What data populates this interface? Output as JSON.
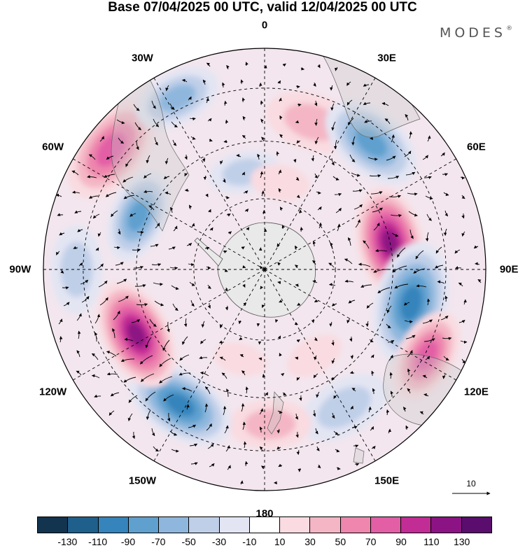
{
  "title": "Base 07/04/2025 00 UTC, valid 12/04/2025 00 UTC",
  "brand": "MODES",
  "brand_mark": "®",
  "longitude_labels": [
    {
      "text": "0",
      "lon": 0
    },
    {
      "text": "30E",
      "lon": 30
    },
    {
      "text": "60E",
      "lon": 60
    },
    {
      "text": "90E",
      "lon": 90
    },
    {
      "text": "120E",
      "lon": 120
    },
    {
      "text": "150E",
      "lon": 150
    },
    {
      "text": "180",
      "lon": 180
    },
    {
      "text": "150W",
      "lon": -150
    },
    {
      "text": "120W",
      "lon": -120
    },
    {
      "text": "90W",
      "lon": -90
    },
    {
      "text": "60W",
      "lon": -60
    },
    {
      "text": "30W",
      "lon": -30
    }
  ],
  "reference_vector": {
    "label": "10"
  },
  "colorbar": {
    "colors": [
      "#12344f",
      "#1f5f8c",
      "#3584bc",
      "#5fa0cf",
      "#8fb7dd",
      "#bfcfe8",
      "#e3e5f3",
      "#ffffff",
      "#f9dbe1",
      "#f4b6c4",
      "#ee86ad",
      "#e25fa6",
      "#c22c95",
      "#8c1383",
      "#5a0d6d"
    ],
    "ticks": [
      "-130",
      "-110",
      "-90",
      "-70",
      "-50",
      "-30",
      "-10",
      "10",
      "30",
      "50",
      "70",
      "90",
      "110",
      "130"
    ]
  },
  "anomalies": [
    {
      "lon": 78,
      "r": 0.58,
      "value": 130,
      "size": 0.95
    },
    {
      "lon": 103,
      "r": 0.68,
      "value": -95,
      "size": 1.05
    },
    {
      "lon": 118,
      "r": 0.83,
      "value": 75,
      "size": 0.8
    },
    {
      "lon": 150,
      "r": 0.72,
      "value": -40,
      "size": 0.8
    },
    {
      "lon": 178,
      "r": 0.7,
      "value": 40,
      "size": 0.7
    },
    {
      "lon": -148,
      "r": 0.72,
      "value": -100,
      "size": 0.95
    },
    {
      "lon": -117,
      "r": 0.65,
      "value": 125,
      "size": 0.95
    },
    {
      "lon": -90,
      "r": 0.85,
      "value": -45,
      "size": 0.75
    },
    {
      "lon": -67,
      "r": 0.62,
      "value": -75,
      "size": 0.8
    },
    {
      "lon": -52,
      "r": 0.88,
      "value": 85,
      "size": 0.95
    },
    {
      "lon": -27,
      "r": 0.87,
      "value": -55,
      "size": 0.75
    },
    {
      "lon": -12,
      "r": 0.45,
      "value": -40,
      "size": 0.6
    },
    {
      "lon": 18,
      "r": 0.7,
      "value": 35,
      "size": 0.8
    },
    {
      "lon": 40,
      "r": 0.75,
      "value": -85,
      "size": 0.9
    },
    {
      "lon": 10,
      "r": 0.4,
      "value": 30,
      "size": 0.5
    },
    {
      "lon": 150,
      "r": 0.45,
      "value": 30,
      "size": 0.5
    },
    {
      "lon": -165,
      "r": 0.42,
      "value": 20,
      "size": 0.45
    }
  ]
}
